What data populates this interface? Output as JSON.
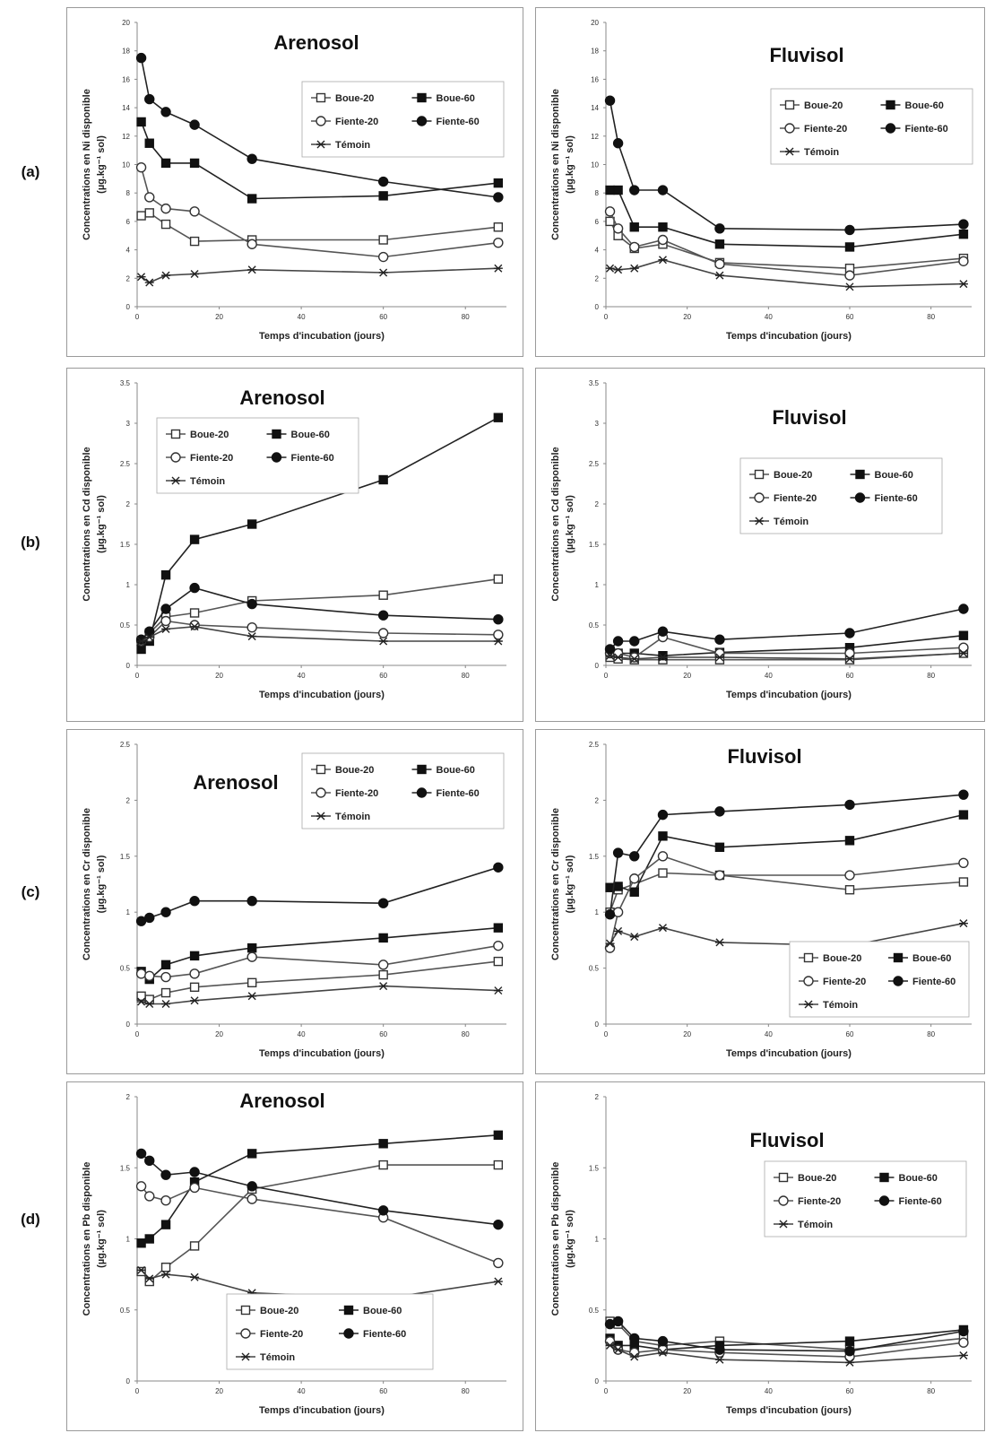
{
  "rows": [
    {
      "label": "(a)",
      "metal": "Ni"
    },
    {
      "label": "(b)",
      "metal": "Cd"
    },
    {
      "label": "(c)",
      "metal": "Cr"
    },
    {
      "label": "(d)",
      "metal": "Pb"
    }
  ],
  "legend_labels": {
    "Boue-20": "Boue-20",
    "Boue-60": "Boue-60",
    "Fiente-20": "Fiente-20",
    "Fiente-60": "Fiente-60",
    "Témoin": "Témoin"
  },
  "chart_data": [
    {
      "id": "a-arenosol",
      "type": "line",
      "title": "Arenosol",
      "xlabel": "Temps d'incubation (jours)",
      "ylabel": [
        "Concentrations en Ni disponible",
        "(µg.kg⁻¹ sol)"
      ],
      "xlim": [
        0,
        90
      ],
      "ylim": [
        0,
        20
      ],
      "yticks": [
        0,
        2,
        4,
        6,
        8,
        10,
        12,
        14,
        16,
        18,
        20
      ],
      "xticks": [
        0,
        20,
        40,
        60,
        80
      ],
      "legend_position": "top-right",
      "x": [
        1,
        3,
        7,
        14,
        28,
        60,
        88
      ],
      "series": [
        {
          "name": "Boue-20",
          "values": [
            6.4,
            6.6,
            5.8,
            4.6,
            4.7,
            4.7,
            5.6
          ]
        },
        {
          "name": "Boue-60",
          "values": [
            13.0,
            11.5,
            10.1,
            10.1,
            7.6,
            7.8,
            8.7
          ]
        },
        {
          "name": "Fiente-20",
          "values": [
            9.8,
            7.7,
            6.9,
            6.7,
            4.4,
            3.5,
            4.5
          ]
        },
        {
          "name": "Fiente-60",
          "values": [
            17.5,
            14.6,
            13.7,
            12.8,
            10.4,
            8.8,
            7.7
          ]
        },
        {
          "name": "Témoin",
          "values": [
            2.1,
            1.7,
            2.2,
            2.3,
            2.6,
            2.4,
            2.7
          ]
        }
      ]
    },
    {
      "id": "a-fluvisol",
      "type": "line",
      "title": "Fluvisol",
      "xlabel": "Temps d'incubation (jours)",
      "ylabel": [
        "Concentrations en Ni disponible",
        "(µg.kg⁻¹ sol)"
      ],
      "xlim": [
        0,
        90
      ],
      "ylim": [
        0,
        20
      ],
      "yticks": [
        0,
        2,
        4,
        6,
        8,
        10,
        12,
        14,
        16,
        18,
        20
      ],
      "xticks": [
        0,
        20,
        40,
        60,
        80
      ],
      "legend_position": "top-right",
      "x": [
        1,
        3,
        7,
        14,
        28,
        60,
        88
      ],
      "series": [
        {
          "name": "Boue-20",
          "values": [
            6.0,
            5.0,
            4.1,
            4.4,
            3.1,
            2.7,
            3.4
          ]
        },
        {
          "name": "Boue-60",
          "values": [
            8.2,
            8.2,
            5.6,
            5.6,
            4.4,
            4.2,
            5.1
          ]
        },
        {
          "name": "Fiente-20",
          "values": [
            6.7,
            5.5,
            4.2,
            4.7,
            3.0,
            2.2,
            3.2
          ]
        },
        {
          "name": "Fiente-60",
          "values": [
            14.5,
            11.5,
            8.2,
            8.2,
            5.5,
            5.4,
            5.8
          ]
        },
        {
          "name": "Témoin",
          "values": [
            2.7,
            2.6,
            2.7,
            3.3,
            2.2,
            1.4,
            1.6
          ]
        }
      ]
    },
    {
      "id": "b-arenosol",
      "type": "line",
      "title": "Arenosol",
      "xlabel": "Temps d'incubation (jours)",
      "ylabel": [
        "Concentrations en Cd disponible",
        "(µg.kg⁻¹ sol)"
      ],
      "xlim": [
        0,
        90
      ],
      "ylim": [
        0,
        3.5
      ],
      "yticks": [
        0,
        0.5,
        1,
        1.5,
        2,
        2.5,
        3,
        3.5
      ],
      "xticks": [
        0,
        20,
        40,
        60,
        80
      ],
      "legend_position": "top-left",
      "x": [
        1,
        3,
        7,
        14,
        28,
        60,
        88
      ],
      "series": [
        {
          "name": "Boue-20",
          "values": [
            0.3,
            0.4,
            0.6,
            0.65,
            0.8,
            0.87,
            1.07
          ]
        },
        {
          "name": "Boue-60",
          "values": [
            0.2,
            0.3,
            1.12,
            1.56,
            1.75,
            2.3,
            3.07
          ]
        },
        {
          "name": "Fiente-20",
          "values": [
            0.3,
            0.35,
            0.55,
            0.5,
            0.47,
            0.4,
            0.38
          ]
        },
        {
          "name": "Fiente-60",
          "values": [
            0.32,
            0.42,
            0.7,
            0.96,
            0.76,
            0.62,
            0.57
          ]
        },
        {
          "name": "Témoin",
          "values": [
            0.3,
            0.35,
            0.45,
            0.48,
            0.36,
            0.3,
            0.3
          ]
        }
      ]
    },
    {
      "id": "b-fluvisol",
      "type": "line",
      "title": "Fluvisol",
      "xlabel": "Temps d'incubation (jours)",
      "ylabel": [
        "Concentrations en Cd disponible",
        "(µg.kg⁻¹ sol)"
      ],
      "xlim": [
        0,
        90
      ],
      "ylim": [
        0,
        3.5
      ],
      "yticks": [
        0,
        0.5,
        1,
        1.5,
        2,
        2.5,
        3,
        3.5
      ],
      "xticks": [
        0,
        20,
        40,
        60,
        80
      ],
      "legend_position": "top-right",
      "x": [
        1,
        3,
        7,
        14,
        28,
        60,
        88
      ],
      "series": [
        {
          "name": "Boue-20",
          "values": [
            0.1,
            0.08,
            0.07,
            0.07,
            0.07,
            0.07,
            0.15
          ]
        },
        {
          "name": "Boue-60",
          "values": [
            0.18,
            0.15,
            0.15,
            0.12,
            0.16,
            0.22,
            0.37
          ]
        },
        {
          "name": "Fiente-20",
          "values": [
            0.15,
            0.15,
            0.1,
            0.35,
            0.15,
            0.15,
            0.22
          ]
        },
        {
          "name": "Fiente-60",
          "values": [
            0.2,
            0.3,
            0.3,
            0.42,
            0.32,
            0.4,
            0.7
          ]
        },
        {
          "name": "Témoin",
          "values": [
            0.12,
            0.1,
            0.08,
            0.1,
            0.1,
            0.08,
            0.15
          ]
        }
      ]
    },
    {
      "id": "c-arenosol",
      "type": "line",
      "title": "Arenosol",
      "xlabel": "Temps d'incubation (jours)",
      "ylabel": [
        "Concentrations en Cr disponible",
        "(µg.kg⁻¹ sol)"
      ],
      "xlim": [
        0,
        90
      ],
      "ylim": [
        0,
        2.5
      ],
      "yticks": [
        0,
        0.5,
        1,
        1.5,
        2,
        2.5
      ],
      "yticklabels": [
        "0",
        "0.5",
        "1",
        "1.5",
        "2",
        "2.5"
      ],
      "xticks": [
        0,
        20,
        40,
        60,
        80
      ],
      "legend_position": "top-right",
      "x": [
        1,
        3,
        7,
        14,
        28,
        60,
        88
      ],
      "series": [
        {
          "name": "Boue-20",
          "values": [
            0.25,
            0.22,
            0.28,
            0.33,
            0.37,
            0.44,
            0.56
          ]
        },
        {
          "name": "Boue-60",
          "values": [
            0.47,
            0.4,
            0.53,
            0.61,
            0.68,
            0.77,
            0.86
          ]
        },
        {
          "name": "Fiente-20",
          "values": [
            0.45,
            0.43,
            0.42,
            0.45,
            0.6,
            0.53,
            0.7
          ]
        },
        {
          "name": "Fiente-60",
          "values": [
            0.92,
            0.95,
            1.0,
            1.1,
            1.1,
            1.08,
            1.4
          ]
        },
        {
          "name": "Témoin",
          "values": [
            0.2,
            0.18,
            0.18,
            0.21,
            0.25,
            0.34,
            0.3
          ]
        }
      ]
    },
    {
      "id": "c-fluvisol",
      "type": "line",
      "title": "Fluvisol",
      "xlabel": "Temps d'incubation (jours)",
      "ylabel": [
        "Concentrations en Cr disponible",
        "(µg.kg⁻¹ sol)"
      ],
      "xlim": [
        0,
        90
      ],
      "ylim": [
        0,
        2.5
      ],
      "yticks": [
        0,
        0.5,
        1,
        1.5,
        2,
        2.5
      ],
      "xticks": [
        0,
        20,
        40,
        60,
        80
      ],
      "legend_position": "bottom-right",
      "x": [
        1,
        3,
        7,
        14,
        28,
        60,
        88
      ],
      "series": [
        {
          "name": "Boue-20",
          "values": [
            1.0,
            1.2,
            1.25,
            1.35,
            1.33,
            1.2,
            1.27
          ]
        },
        {
          "name": "Boue-60",
          "values": [
            1.22,
            1.23,
            1.18,
            1.68,
            1.58,
            1.64,
            1.87
          ]
        },
        {
          "name": "Fiente-20",
          "values": [
            0.68,
            1.0,
            1.3,
            1.5,
            1.33,
            1.33,
            1.44
          ]
        },
        {
          "name": "Fiente-60",
          "values": [
            0.98,
            1.53,
            1.5,
            1.87,
            1.9,
            1.96,
            2.05
          ]
        },
        {
          "name": "Témoin",
          "values": [
            0.72,
            0.83,
            0.78,
            0.86,
            0.73,
            0.7,
            0.9
          ]
        }
      ]
    },
    {
      "id": "d-arenosol",
      "type": "line",
      "title": "Arenosol",
      "xlabel": "Temps d'incubation (jours)",
      "ylabel": [
        "Concentrations en Pb disponible",
        "(µg.kg⁻¹ sol)"
      ],
      "xlim": [
        0,
        90
      ],
      "ylim": [
        0,
        2
      ],
      "yticks": [
        0,
        0.5,
        1,
        1.5,
        2
      ],
      "xticks": [
        0,
        20,
        40,
        60,
        80
      ],
      "legend_position": "bottom-center",
      "x": [
        1,
        3,
        7,
        14,
        28,
        60,
        88
      ],
      "series": [
        {
          "name": "Boue-20",
          "values": [
            0.77,
            0.7,
            0.8,
            0.95,
            1.35,
            1.52,
            1.52
          ]
        },
        {
          "name": "Boue-60",
          "values": [
            0.97,
            1.0,
            1.1,
            1.4,
            1.6,
            1.67,
            1.73
          ]
        },
        {
          "name": "Fiente-20",
          "values": [
            1.37,
            1.3,
            1.27,
            1.36,
            1.28,
            1.15,
            0.83
          ]
        },
        {
          "name": "Fiente-60",
          "values": [
            1.6,
            1.55,
            1.45,
            1.47,
            1.37,
            1.2,
            1.1
          ]
        },
        {
          "name": "Témoin",
          "values": [
            0.78,
            0.72,
            0.75,
            0.73,
            0.62,
            0.58,
            0.7
          ]
        }
      ]
    },
    {
      "id": "d-fluvisol",
      "type": "line",
      "title": "Fluvisol",
      "xlabel": "Temps d'incubation (jours)",
      "ylabel": [
        "Concentrations en Pb disponible",
        "(µg.kg⁻¹ sol)"
      ],
      "xlim": [
        0,
        90
      ],
      "ylim": [
        0,
        2
      ],
      "yticks": [
        0,
        0.5,
        1,
        1.5,
        2
      ],
      "yticklabels": [
        "0",
        "0.5",
        "1",
        "1.5",
        "2"
      ],
      "xticks": [
        0,
        20,
        40,
        60,
        80
      ],
      "legend_position": "top-right",
      "x": [
        1,
        3,
        7,
        14,
        28,
        60,
        88
      ],
      "series": [
        {
          "name": "Boue-20",
          "values": [
            0.42,
            0.4,
            0.28,
            0.25,
            0.28,
            0.22,
            0.3
          ]
        },
        {
          "name": "Boue-60",
          "values": [
            0.3,
            0.25,
            0.25,
            0.22,
            0.25,
            0.28,
            0.36
          ]
        },
        {
          "name": "Fiente-20",
          "values": [
            0.28,
            0.22,
            0.2,
            0.22,
            0.2,
            0.17,
            0.27
          ]
        },
        {
          "name": "Fiente-60",
          "values": [
            0.4,
            0.42,
            0.3,
            0.28,
            0.22,
            0.21,
            0.35
          ]
        },
        {
          "name": "Témoin",
          "values": [
            0.25,
            0.22,
            0.17,
            0.2,
            0.15,
            0.13,
            0.18
          ]
        }
      ]
    }
  ]
}
